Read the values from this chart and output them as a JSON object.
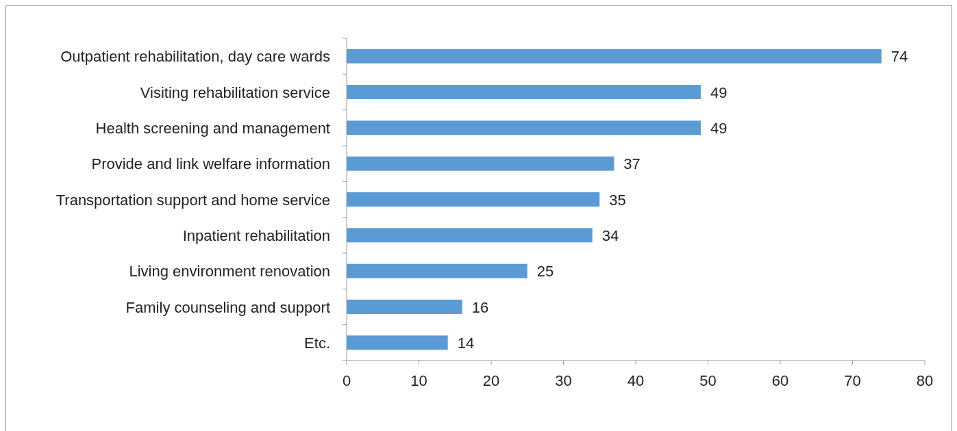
{
  "chart_data": {
    "type": "bar",
    "orientation": "horizontal",
    "categories": [
      "Outpatient rehabilitation, day care wards",
      "Visiting rehabilitation service",
      "Health screening and management",
      "Provide and link welfare information",
      "Transportation support and home service",
      "Inpatient rehabilitation",
      "Living environment renovation",
      "Family counseling and support",
      "Etc."
    ],
    "values": [
      74,
      49,
      49,
      37,
      35,
      34,
      25,
      16,
      14
    ],
    "color": "#5b9bd5",
    "xlim": [
      0,
      80
    ],
    "xticks": [
      0,
      10,
      20,
      30,
      40,
      50,
      60,
      70,
      80
    ],
    "data_labels": true,
    "grid": false
  }
}
